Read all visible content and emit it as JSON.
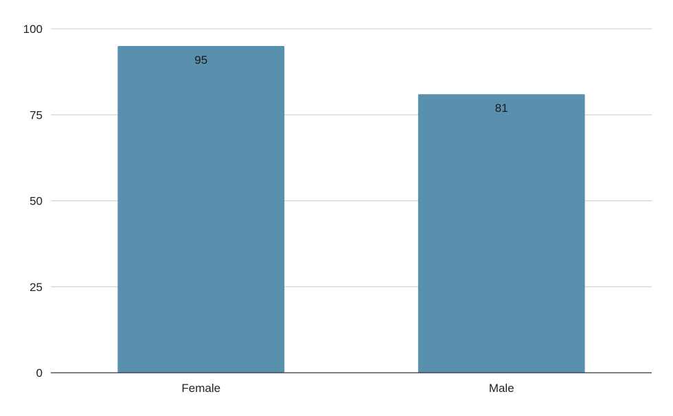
{
  "chart_data": {
    "type": "bar",
    "categories": [
      "Female",
      "Male"
    ],
    "series": [
      {
        "values": [
          95,
          81
        ]
      }
    ],
    "data_labels": [
      "95",
      "81"
    ],
    "yticks": [
      0,
      25,
      50,
      75,
      100
    ],
    "ylim": [
      0,
      100
    ],
    "title": "",
    "xlabel": "",
    "ylabel": "",
    "grid": true,
    "legend": "none",
    "bar_color": "#5890ad"
  }
}
